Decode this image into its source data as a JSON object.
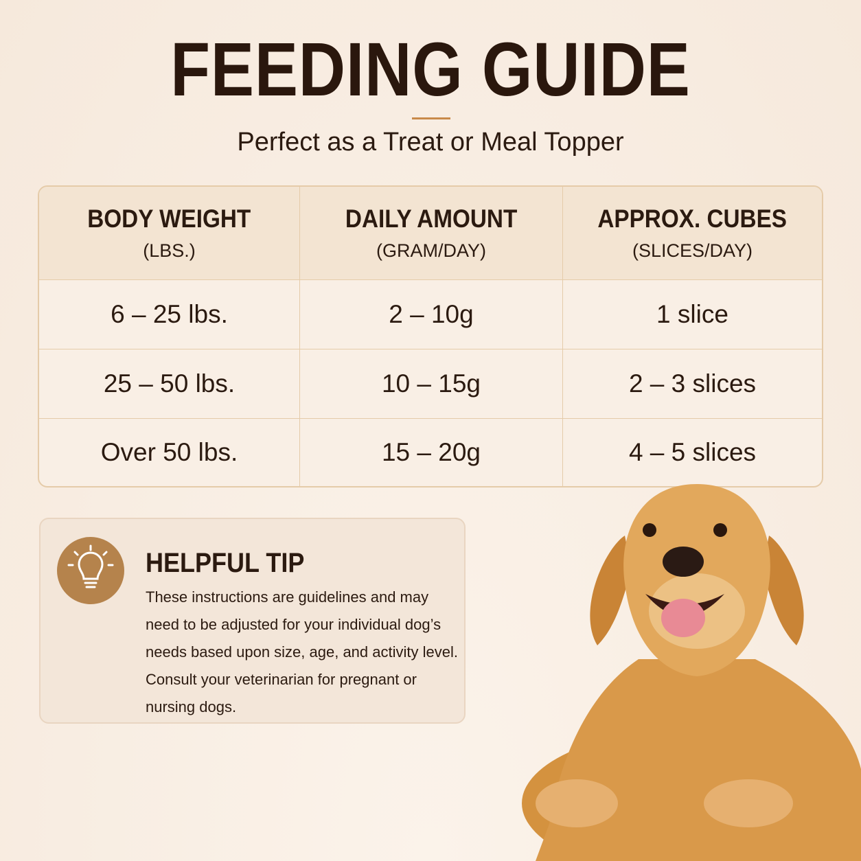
{
  "header": {
    "title": "FEEDING GUIDE",
    "subtitle": "Perfect as a Treat or Meal Topper"
  },
  "table": {
    "headers": [
      {
        "title": "BODY WEIGHT",
        "unit": "(LBS.)"
      },
      {
        "title": "DAILY AMOUNT",
        "unit": "(GRAM/DAY)"
      },
      {
        "title": "APPROX. CUBES",
        "unit": "(SLICES/DAY)"
      }
    ],
    "rows": [
      [
        "6 – 25 lbs.",
        "2 – 10g",
        "1 slice"
      ],
      [
        "25 – 50 lbs.",
        "10 – 15g",
        "2 – 3 slices"
      ],
      [
        "Over 50 lbs.",
        "15 – 20g",
        "4 – 5 slices"
      ]
    ]
  },
  "tip": {
    "title": "HELPFUL TIP",
    "text": "These instructions are guidelines and may need to be adjusted for your individual dog’s needs based upon size, age, and activity level. Consult your veterinarian for pregnant or nursing dogs."
  }
}
